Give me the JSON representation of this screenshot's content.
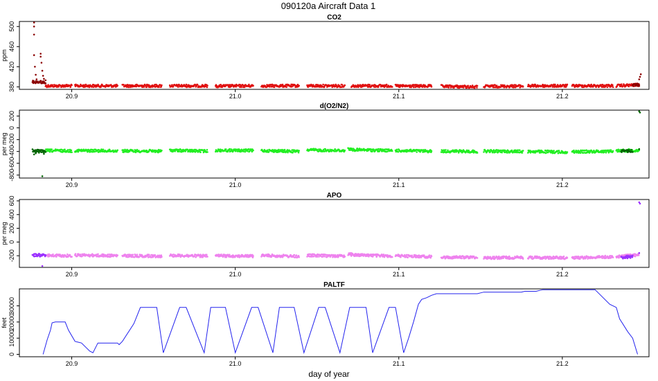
{
  "title": "090120a   Aircraft Data 1",
  "xlabel": "day of year",
  "chart_data": [
    {
      "type": "scatter",
      "title": "CO2",
      "ylabel": "ppm",
      "xlim": [
        20.868,
        21.253
      ],
      "ylim": [
        375,
        510
      ],
      "xticks": [
        20.9,
        21.0,
        21.1,
        21.2
      ],
      "xtick_labels": [
        "20.9",
        "21.0",
        "21.1",
        "21.2"
      ],
      "yticks": [
        380,
        420,
        460,
        500
      ],
      "ytick_labels": [
        "380",
        "420",
        "460",
        "500"
      ],
      "main_color": "#e01010",
      "dark_color": "#8b0000",
      "segments": [
        {
          "x": [
            20.884,
            20.9
          ],
          "y": [
            382,
            382
          ]
        },
        {
          "x": [
            20.902,
            20.928
          ],
          "y": [
            382,
            382
          ]
        },
        {
          "x": [
            20.931,
            20.955
          ],
          "y": [
            382,
            382
          ]
        },
        {
          "x": [
            20.96,
            20.983
          ],
          "y": [
            382,
            382
          ]
        },
        {
          "x": [
            20.988,
            21.011
          ],
          "y": [
            381.5,
            382
          ]
        },
        {
          "x": [
            21.016,
            21.039
          ],
          "y": [
            382,
            382
          ]
        },
        {
          "x": [
            21.044,
            21.067
          ],
          "y": [
            382,
            382
          ]
        },
        {
          "x": [
            21.071,
            21.096
          ],
          "y": [
            382,
            382
          ]
        },
        {
          "x": [
            21.098,
            21.12
          ],
          "y": [
            381.5,
            381.5
          ]
        },
        {
          "x": [
            21.126,
            21.148
          ],
          "y": [
            381,
            380
          ]
        },
        {
          "x": [
            21.152,
            21.176
          ],
          "y": [
            381,
            381.5
          ]
        },
        {
          "x": [
            21.179,
            21.203
          ],
          "y": [
            382,
            382
          ]
        },
        {
          "x": [
            21.206,
            21.231
          ],
          "y": [
            382,
            382
          ]
        },
        {
          "x": [
            21.233,
            21.247
          ],
          "y": [
            382,
            384
          ]
        }
      ],
      "dark_segments": [
        {
          "x": [
            20.876,
            20.884
          ],
          "y": [
            390,
            389
          ]
        },
        {
          "x": [
            21.243,
            21.247
          ],
          "y": [
            383,
            384
          ]
        }
      ],
      "points": [
        {
          "x": 20.877,
          "y": 508
        },
        {
          "x": 20.877,
          "y": 500
        },
        {
          "x": 20.877,
          "y": 484
        },
        {
          "x": 20.877,
          "y": 443
        },
        {
          "x": 20.8775,
          "y": 420
        },
        {
          "x": 20.878,
          "y": 404
        },
        {
          "x": 20.8785,
          "y": 395
        },
        {
          "x": 20.881,
          "y": 446
        },
        {
          "x": 20.881,
          "y": 440
        },
        {
          "x": 20.8815,
          "y": 428
        },
        {
          "x": 20.882,
          "y": 412
        },
        {
          "x": 20.8825,
          "y": 402
        },
        {
          "x": 20.883,
          "y": 396
        },
        {
          "x": 20.884,
          "y": 393
        },
        {
          "x": 21.247,
          "y": 395
        },
        {
          "x": 21.2475,
          "y": 400
        },
        {
          "x": 21.248,
          "y": 405
        }
      ]
    },
    {
      "type": "scatter",
      "title": "d(O2/N2)",
      "ylabel": "per meg",
      "xlim": [
        20.868,
        21.253
      ],
      "ylim": [
        -850,
        300
      ],
      "xticks": [
        20.9,
        21.0,
        21.1,
        21.2
      ],
      "xtick_labels": [
        "20.9",
        "21.0",
        "21.1",
        "21.2"
      ],
      "yticks": [
        -800,
        -600,
        -400,
        -200,
        0,
        200
      ],
      "ytick_labels": [
        "-800",
        "-600",
        "-400",
        "-200",
        "0",
        "200"
      ],
      "main_color": "#22ee22",
      "dark_color": "#006400",
      "segments": [
        {
          "x": [
            20.884,
            20.9
          ],
          "y": [
            -385,
            -390
          ]
        },
        {
          "x": [
            20.902,
            20.928
          ],
          "y": [
            -385,
            -390
          ]
        },
        {
          "x": [
            20.931,
            20.955
          ],
          "y": [
            -390,
            -395
          ]
        },
        {
          "x": [
            20.96,
            20.983
          ],
          "y": [
            -380,
            -395
          ]
        },
        {
          "x": [
            20.988,
            21.011
          ],
          "y": [
            -380,
            -385
          ]
        },
        {
          "x": [
            21.016,
            21.039
          ],
          "y": [
            -385,
            -400
          ]
        },
        {
          "x": [
            21.044,
            21.067
          ],
          "y": [
            -375,
            -385
          ]
        },
        {
          "x": [
            21.069,
            21.071
          ],
          "y": [
            -360,
            -355
          ]
        },
        {
          "x": [
            21.071,
            21.096
          ],
          "y": [
            -370,
            -385
          ]
        },
        {
          "x": [
            21.098,
            21.12
          ],
          "y": [
            -385,
            -395
          ]
        },
        {
          "x": [
            21.126,
            21.148
          ],
          "y": [
            -395,
            -400
          ]
        },
        {
          "x": [
            21.152,
            21.176
          ],
          "y": [
            -395,
            -400
          ]
        },
        {
          "x": [
            21.179,
            21.203
          ],
          "y": [
            -400,
            -410
          ]
        },
        {
          "x": [
            21.206,
            21.231
          ],
          "y": [
            -405,
            -395
          ]
        },
        {
          "x": [
            21.233,
            21.247
          ],
          "y": [
            -385,
            -380
          ]
        }
      ],
      "dark_segments": [
        {
          "x": [
            20.876,
            20.884
          ],
          "y": [
            -385,
            -395
          ]
        },
        {
          "x": [
            21.236,
            21.243
          ],
          "y": [
            -395,
            -390
          ]
        }
      ],
      "points": [
        {
          "x": 20.877,
          "y": -450
        },
        {
          "x": 20.878,
          "y": -430
        },
        {
          "x": 20.88,
          "y": -420
        },
        {
          "x": 20.882,
          "y": -820
        },
        {
          "x": 20.883,
          "y": -440
        },
        {
          "x": 21.247,
          "y": 280
        },
        {
          "x": 21.2475,
          "y": 260
        },
        {
          "x": 21.247,
          "y": -360
        }
      ]
    },
    {
      "type": "scatter",
      "title": "APO",
      "ylabel": "per meg",
      "xlim": [
        20.868,
        21.253
      ],
      "ylim": [
        -370,
        620
      ],
      "xticks": [
        20.9,
        21.0,
        21.1,
        21.2
      ],
      "xtick_labels": [
        "20.9",
        "21.0",
        "21.1",
        "21.2"
      ],
      "yticks": [
        -200,
        0,
        200,
        400,
        600
      ],
      "ytick_labels": [
        "-200",
        "0",
        "200",
        "400",
        "600"
      ],
      "main_color": "#ee82ee",
      "dark_color": "#9b30ff",
      "segments": [
        {
          "x": [
            20.884,
            20.9
          ],
          "y": [
            -195,
            -200
          ]
        },
        {
          "x": [
            20.902,
            20.928
          ],
          "y": [
            -190,
            -200
          ]
        },
        {
          "x": [
            20.931,
            20.955
          ],
          "y": [
            -200,
            -205
          ]
        },
        {
          "x": [
            20.96,
            20.983
          ],
          "y": [
            -195,
            -205
          ]
        },
        {
          "x": [
            20.988,
            21.011
          ],
          "y": [
            -200,
            -205
          ]
        },
        {
          "x": [
            21.016,
            21.039
          ],
          "y": [
            -195,
            -210
          ]
        },
        {
          "x": [
            21.044,
            21.067
          ],
          "y": [
            -195,
            -205
          ]
        },
        {
          "x": [
            21.069,
            21.071
          ],
          "y": [
            -175,
            -170
          ]
        },
        {
          "x": [
            21.071,
            21.096
          ],
          "y": [
            -185,
            -205
          ]
        },
        {
          "x": [
            21.098,
            21.12
          ],
          "y": [
            -200,
            -215
          ]
        },
        {
          "x": [
            21.126,
            21.148
          ],
          "y": [
            -225,
            -220
          ]
        },
        {
          "x": [
            21.152,
            21.176
          ],
          "y": [
            -230,
            -225
          ]
        },
        {
          "x": [
            21.179,
            21.203
          ],
          "y": [
            -225,
            -230
          ]
        },
        {
          "x": [
            21.206,
            21.231
          ],
          "y": [
            -230,
            -215
          ]
        },
        {
          "x": [
            21.233,
            21.247
          ],
          "y": [
            -215,
            -185
          ]
        }
      ],
      "dark_segments": [
        {
          "x": [
            20.876,
            20.884
          ],
          "y": [
            -190,
            -195
          ]
        },
        {
          "x": [
            21.236,
            21.243
          ],
          "y": [
            -225,
            -215
          ]
        }
      ],
      "points": [
        {
          "x": 20.882,
          "y": -350
        },
        {
          "x": 20.877,
          "y": -175
        },
        {
          "x": 20.88,
          "y": -170
        },
        {
          "x": 21.247,
          "y": 580
        },
        {
          "x": 21.2475,
          "y": 560
        },
        {
          "x": 21.247,
          "y": -160
        }
      ]
    },
    {
      "type": "line",
      "title": "PALTF",
      "ylabel": "feet",
      "xlim": [
        20.868,
        21.253
      ],
      "ylim": [
        -1500,
        40500
      ],
      "xticks": [
        20.9,
        21.0,
        21.1,
        21.2
      ],
      "xtick_labels": [
        "20.9",
        "21.0",
        "21.1",
        "21.2"
      ],
      "yticks": [
        0,
        10000,
        20000,
        30000
      ],
      "ytick_labels": [
        "0",
        "10000",
        "20000",
        "30000"
      ],
      "main_color": "#2222ee",
      "series": [
        {
          "x": [
            20.8825,
            20.885,
            20.887,
            20.888,
            20.89,
            20.892,
            20.896,
            20.898,
            20.902,
            20.904,
            20.906,
            20.909,
            20.911,
            20.913,
            20.916,
            20.928,
            20.929,
            20.931,
            20.938,
            20.942,
            20.952,
            20.956,
            20.966,
            20.97,
            20.981,
            20.985,
            20.994,
            21.0,
            21.01,
            21.014,
            21.023,
            21.027,
            21.036,
            21.042,
            21.051,
            21.055,
            21.064,
            21.07,
            21.08,
            21.084,
            21.094,
            21.098,
            21.103,
            21.106,
            21.109,
            21.112,
            21.114,
            21.117,
            21.12,
            21.123,
            21.148,
            21.15,
            21.152,
            21.175,
            21.177,
            21.184,
            21.186,
            21.188,
            21.22,
            21.222,
            21.229,
            21.233,
            21.235,
            21.24,
            21.243,
            21.246
          ],
          "y": [
            0,
            9000,
            15000,
            19500,
            20000,
            20000,
            20000,
            15000,
            8000,
            7500,
            7000,
            4000,
            2000,
            1000,
            7000,
            7000,
            6000,
            8000,
            19000,
            29000,
            29000,
            1000,
            29000,
            29000,
            1000,
            29000,
            29000,
            1000,
            29000,
            29000,
            1000,
            29000,
            29000,
            1000,
            29000,
            29000,
            1000,
            29000,
            29000,
            1000,
            29000,
            29000,
            1000,
            10000,
            20000,
            31000,
            34000,
            35000,
            36500,
            37500,
            37500,
            38000,
            38500,
            38500,
            39000,
            39000,
            39500,
            40000,
            40000,
            38000,
            31000,
            29000,
            22000,
            14000,
            10000,
            0
          ]
        }
      ]
    }
  ]
}
